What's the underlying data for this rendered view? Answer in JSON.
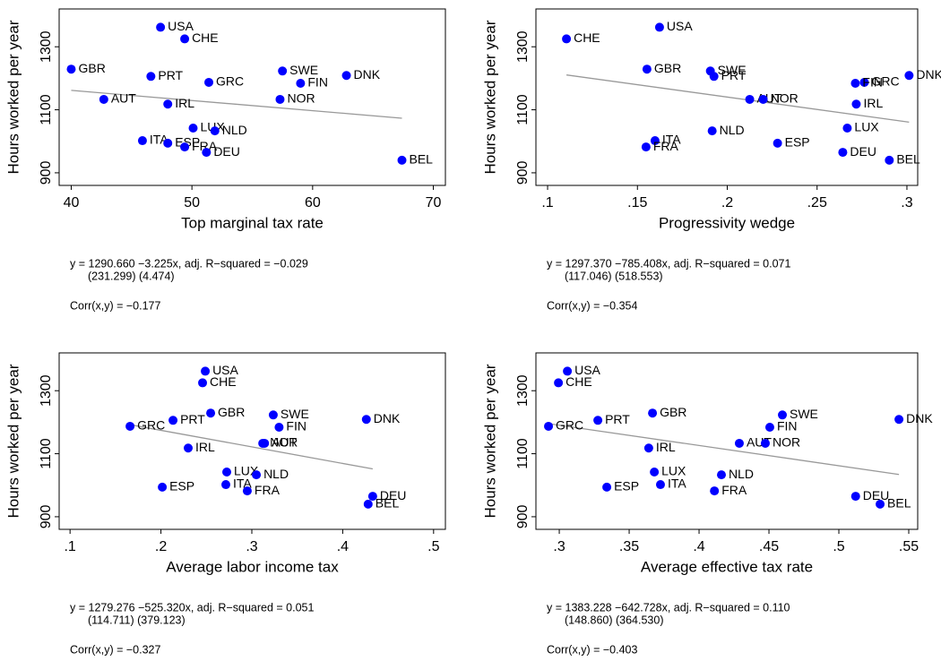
{
  "chart_data": [
    {
      "type": "scatter",
      "ylabel": "Hours worked per year",
      "xlabel": "Top marginal tax rate",
      "point_labels": [
        "USA",
        "CHE",
        "GBR",
        "PRT",
        "SWE",
        "DNK",
        "GRC",
        "FIN",
        "AUT",
        "NOR",
        "IRL",
        "LUX",
        "NLD",
        "ITA",
        "ESP",
        "FRA",
        "DEU",
        "BEL"
      ],
      "x": [
        47.4,
        49.4,
        40,
        46.6,
        57.5,
        62.8,
        51.4,
        59.0,
        42.7,
        57.3,
        48,
        50.1,
        51.9,
        45.9,
        48,
        49.4,
        51.2,
        67.4
      ],
      "y": [
        1362,
        1325,
        1229,
        1206,
        1223,
        1209,
        1187,
        1184,
        1133,
        1133,
        1118,
        1042,
        1033,
        1002,
        994,
        982,
        965,
        940
      ],
      "color": "#0000ff",
      "fit_color": "#999999",
      "xlim": [
        39,
        71
      ],
      "ylim": [
        860,
        1420
      ],
      "xticks": [
        40,
        50,
        60,
        70
      ],
      "yticks": [
        900,
        1100,
        1300
      ],
      "fit": {
        "intercept": 1290.66,
        "slope": -3.225
      },
      "equation": "y = 1290.660 −3.225x,  adj. R−squared = −0.029",
      "std_errors": "(231.299)   (4.474)",
      "correlation": "Corr(x,y) = −0.177"
    },
    {
      "type": "scatter",
      "ylabel": "Hours worked per year",
      "xlabel": "Progressivity wedge",
      "point_labels": [
        "USA",
        "CHE",
        "GBR",
        "PRT",
        "SWE",
        "DNK",
        "GRC",
        "FIN",
        "AUT",
        "NOR",
        "IRL",
        "LUX",
        "NLD",
        "ITA",
        "ESP",
        "FRA",
        "DEU",
        "BEL"
      ],
      "x": [
        0.1623,
        0.1105,
        0.1553,
        0.1926,
        0.1906,
        0.3012,
        0.2763,
        0.2713,
        0.2125,
        0.22,
        0.2718,
        0.2668,
        0.1916,
        0.1598,
        0.228,
        0.1548,
        0.2643,
        0.2902
      ],
      "y": [
        1362,
        1325,
        1229,
        1206,
        1223,
        1209,
        1187,
        1184,
        1133,
        1133,
        1118,
        1042,
        1033,
        1002,
        994,
        982,
        965,
        940
      ],
      "color": "#0000ff",
      "fit_color": "#999999",
      "xlim": [
        0.0935,
        0.306
      ],
      "ylim": [
        860,
        1420
      ],
      "xticks": [
        {
          "value": 0.1,
          "label": ".1"
        },
        {
          "value": 0.15,
          "label": ".15"
        },
        {
          "value": 0.2,
          "label": ".2"
        },
        {
          "value": 0.25,
          "label": ".25"
        },
        {
          "value": 0.3,
          "label": ".3"
        }
      ],
      "yticks": [
        900,
        1100,
        1300
      ],
      "fit": {
        "intercept": 1297.37,
        "slope": -785.408
      },
      "equation": "y = 1297.370 −785.408x,  adj. R−squared = 0.071",
      "std_errors": "(117.046)   (518.553)",
      "correlation": "Corr(x,y) = −0.354"
    },
    {
      "type": "scatter",
      "ylabel": "Hours worked per year",
      "xlabel": "Average labor income tax",
      "point_labels": [
        "USA",
        "CHE",
        "GBR",
        "PRT",
        "SWE",
        "DNK",
        "GRC",
        "FIN",
        "AUT",
        "NOR",
        "IRL",
        "LUX",
        "NLD",
        "ITA",
        "ESP",
        "FRA",
        "DEU",
        "BEL"
      ],
      "x": [
        0.2488,
        0.2458,
        0.2547,
        0.2133,
        0.3236,
        0.426,
        0.166,
        0.33,
        0.314,
        0.312,
        0.23,
        0.2724,
        0.305,
        0.2714,
        0.2015,
        0.295,
        0.433,
        0.428
      ],
      "y": [
        1362,
        1325,
        1229,
        1206,
        1223,
        1209,
        1187,
        1184,
        1133,
        1133,
        1118,
        1042,
        1033,
        1002,
        994,
        982,
        965,
        940
      ],
      "color": "#0000ff",
      "fit_color": "#999999",
      "xlim": [
        0.088,
        0.513
      ],
      "ylim": [
        860,
        1420
      ],
      "xticks": [
        {
          "value": 0.1,
          "label": ".1"
        },
        {
          "value": 0.2,
          "label": ".2"
        },
        {
          "value": 0.3,
          "label": ".3"
        },
        {
          "value": 0.4,
          "label": ".4"
        },
        {
          "value": 0.5,
          "label": ".5"
        }
      ],
      "yticks": [
        900,
        1100,
        1300
      ],
      "fit": {
        "intercept": 1279.276,
        "slope": -525.32
      },
      "equation": "y = 1279.276 −525.320x,  adj. R−squared = 0.051",
      "std_errors": "(114.711)   (379.123)",
      "correlation": "Corr(x,y) = −0.327"
    },
    {
      "type": "scatter",
      "ylabel": "Hours worked per year",
      "xlabel": "Average effective tax rate",
      "point_labels": [
        "USA",
        "CHE",
        "GBR",
        "PRT",
        "SWE",
        "DNK",
        "GRC",
        "FIN",
        "AUT",
        "NOR",
        "IRL",
        "LUX",
        "NLD",
        "ITA",
        "ESP",
        "FRA",
        "DEU",
        "BEL"
      ],
      "x": [
        0.3058,
        0.2994,
        0.3667,
        0.3276,
        0.4596,
        0.543,
        0.2923,
        0.4506,
        0.4288,
        0.4474,
        0.364,
        0.368,
        0.416,
        0.3724,
        0.334,
        0.411,
        0.512,
        0.5295
      ],
      "y": [
        1362,
        1325,
        1229,
        1206,
        1223,
        1209,
        1187,
        1184,
        1133,
        1133,
        1118,
        1042,
        1033,
        1002,
        994,
        982,
        965,
        940
      ],
      "color": "#0000ff",
      "fit_color": "#999999",
      "xlim": [
        0.2833,
        0.5564
      ],
      "ylim": [
        860,
        1420
      ],
      "xticks": [
        {
          "value": 0.3,
          "label": ".3"
        },
        {
          "value": 0.35,
          "label": ".35"
        },
        {
          "value": 0.4,
          "label": ".4"
        },
        {
          "value": 0.45,
          "label": ".45"
        },
        {
          "value": 0.5,
          "label": ".5"
        },
        {
          "value": 0.55,
          "label": ".55"
        }
      ],
      "yticks": [
        900,
        1100,
        1300
      ],
      "fit": {
        "intercept": 1383.228,
        "slope": -642.728
      },
      "equation": "y = 1383.228 −642.728x,  adj. R−squared = 0.110",
      "std_errors": "(148.860)   (364.530)",
      "correlation": "Corr(x,y) = −0.403"
    }
  ]
}
